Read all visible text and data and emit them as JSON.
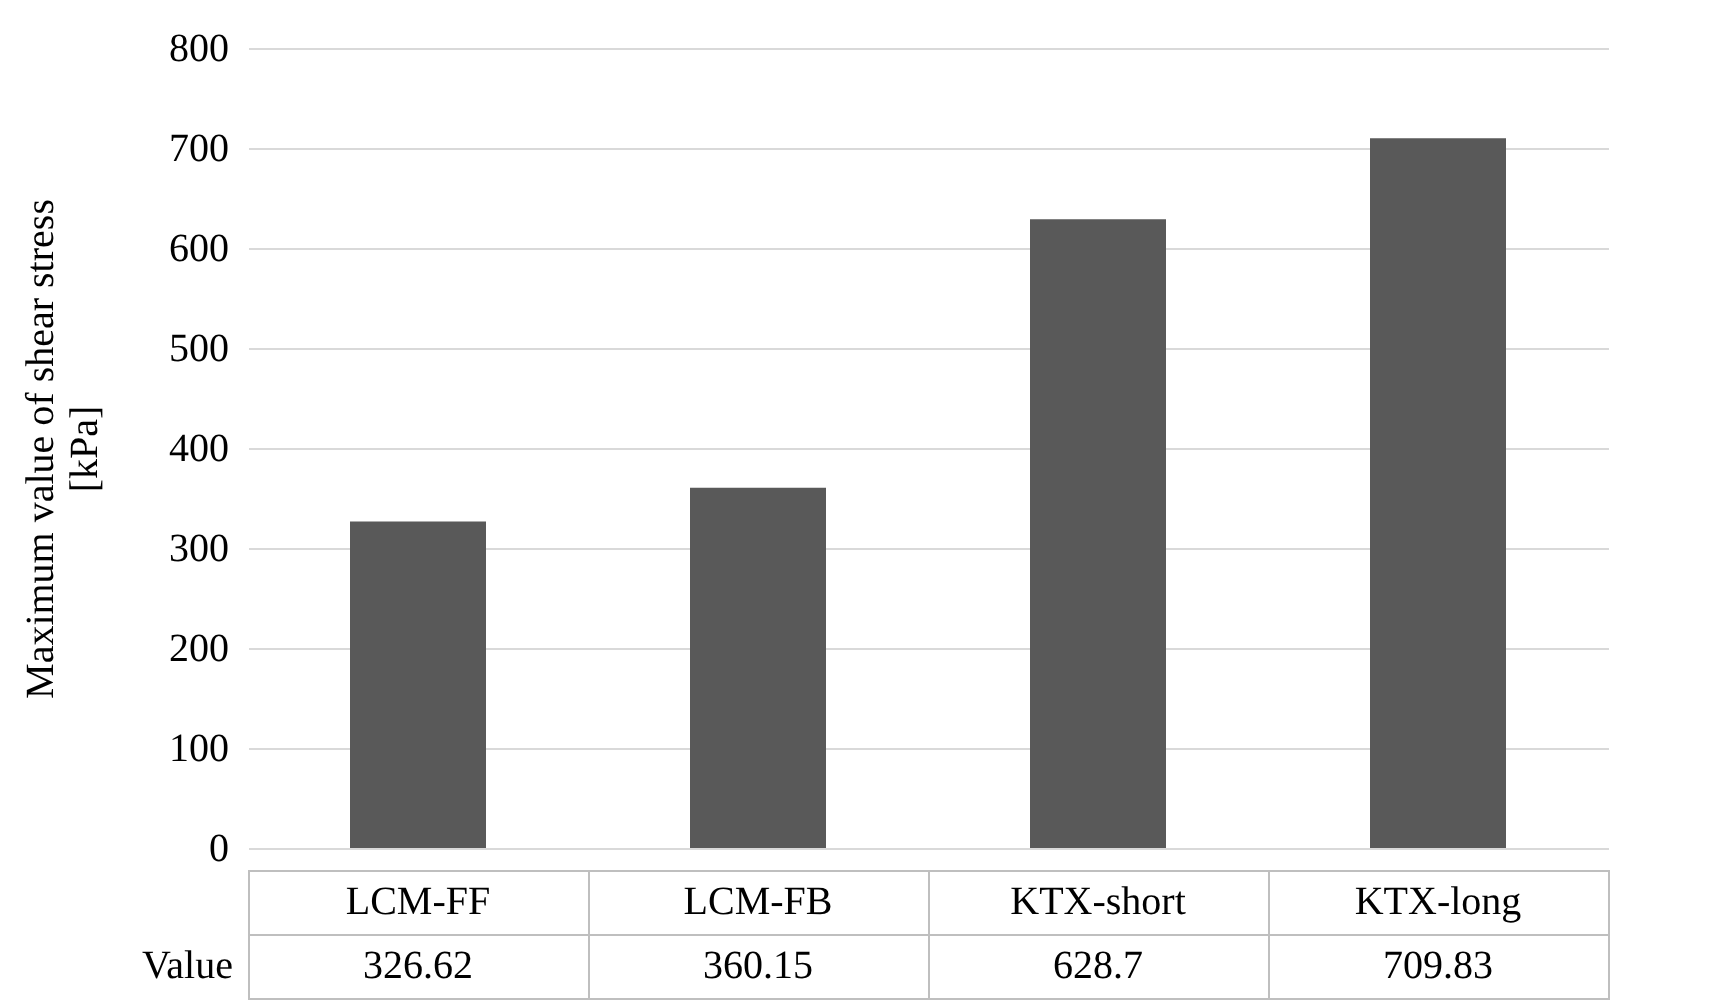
{
  "chart_data": {
    "type": "bar",
    "ylabel": "Maximum value of shear stress\n[kPa]",
    "categories": [
      "LCM-FF",
      "LCM-FB",
      "KTX-short",
      "KTX-long"
    ],
    "series": [
      {
        "name": "Value",
        "color": "#595959",
        "values": [
          326.62,
          360.15,
          628.7,
          709.83
        ]
      }
    ],
    "ylim": [
      0,
      800
    ],
    "yticks": [
      0,
      100,
      200,
      300,
      400,
      500,
      600,
      700,
      800
    ],
    "grid": "y",
    "data_labels": true
  }
}
